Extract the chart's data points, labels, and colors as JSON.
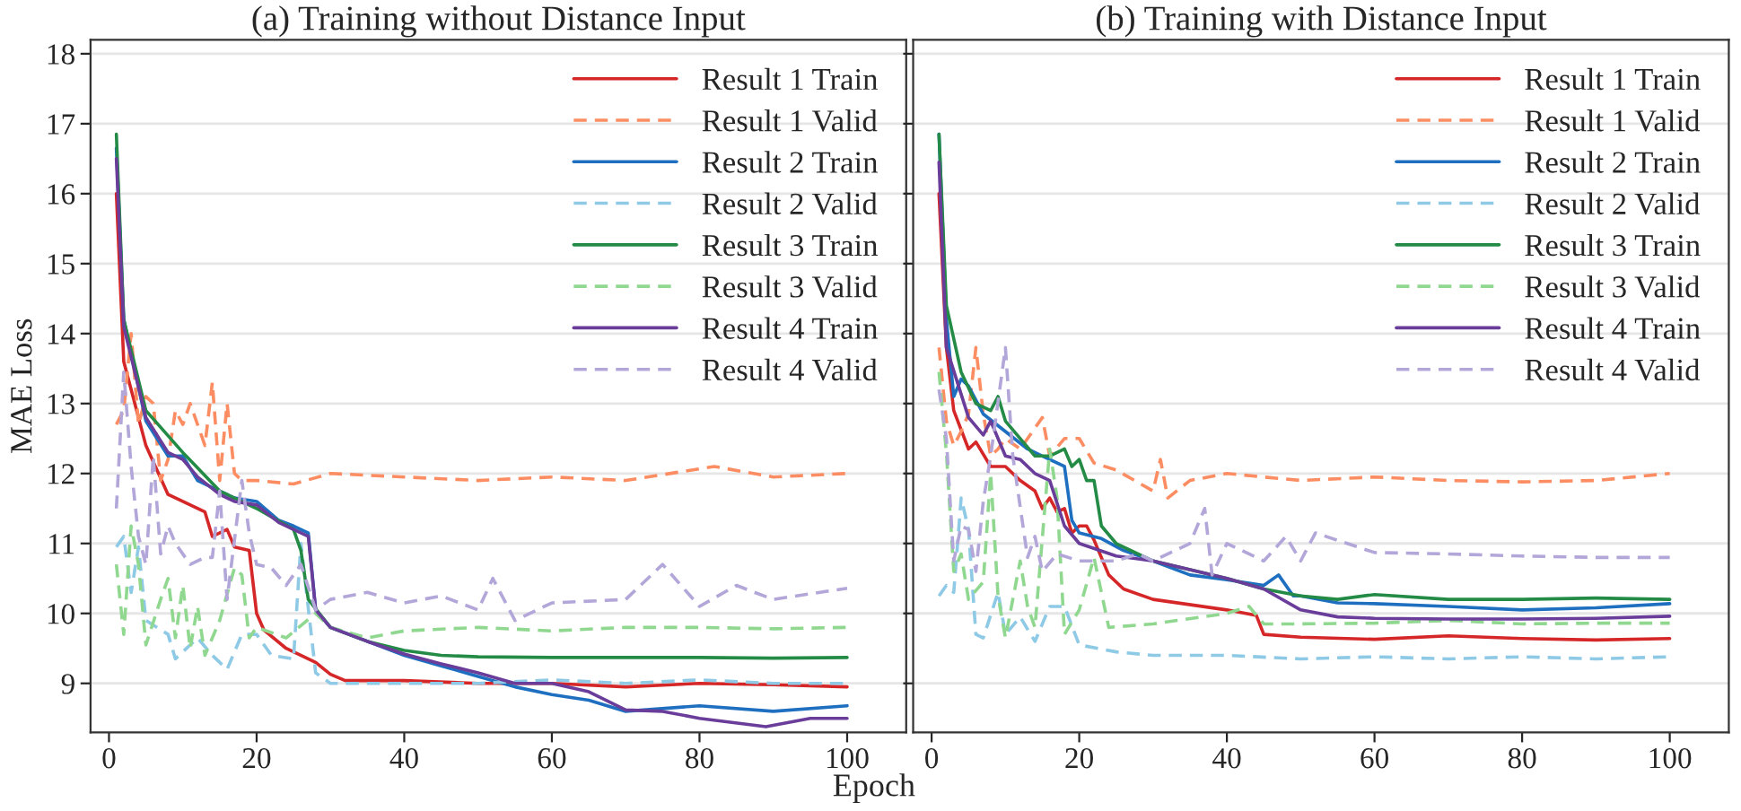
{
  "chart_data": [
    {
      "type": "line",
      "title": "(a) Training without Distance Input",
      "xlabel": "Epoch",
      "ylabel": "MAE Loss",
      "xlim": [
        -2.5,
        108
      ],
      "ylim": [
        8.3,
        18.2
      ],
      "xticks": [
        0,
        20,
        40,
        60,
        80,
        100
      ],
      "yticks": [
        9,
        10,
        11,
        12,
        13,
        14,
        15,
        16,
        17,
        18
      ],
      "grid": "y",
      "legend": "top right",
      "series": [
        {
          "name": "Result 1 Train",
          "color": "#d62728",
          "line_style": "solid",
          "x": [
            1,
            2,
            5,
            8,
            10,
            13,
            14,
            16,
            17,
            19,
            20,
            21,
            24,
            28,
            30,
            32,
            40,
            50,
            60,
            70,
            80,
            90,
            100
          ],
          "values": [
            16.0,
            13.6,
            12.4,
            11.7,
            11.6,
            11.45,
            11.1,
            11.2,
            10.95,
            10.9,
            10.0,
            9.76,
            9.5,
            9.3,
            9.13,
            9.04,
            9.04,
            9.0,
            9.0,
            8.95,
            9.0,
            8.98,
            8.95
          ]
        },
        {
          "name": "Result 1 Valid",
          "color": "#fc8d62",
          "line_style": "dashed",
          "x": [
            1,
            2,
            3,
            4,
            5,
            6,
            7,
            8,
            9,
            10,
            11,
            13,
            14,
            15,
            16,
            17,
            18,
            20,
            25,
            30,
            40,
            50,
            60,
            70,
            82,
            90,
            100
          ],
          "values": [
            12.7,
            12.9,
            14.0,
            12.7,
            13.1,
            13.0,
            11.9,
            12.2,
            12.9,
            12.7,
            13.0,
            12.4,
            13.3,
            11.9,
            13.0,
            12.0,
            11.9,
            11.9,
            11.85,
            12.0,
            11.95,
            11.9,
            11.95,
            11.9,
            12.1,
            11.95,
            12.0
          ]
        },
        {
          "name": "Result 2 Train",
          "color": "#1f6fc0",
          "line_style": "solid",
          "x": [
            1,
            2,
            5,
            8,
            10,
            12,
            15,
            17,
            20,
            23,
            25,
            27,
            28,
            30,
            35,
            40,
            45,
            50,
            55,
            60,
            65,
            70,
            80,
            90,
            100
          ],
          "values": [
            16.65,
            14.2,
            12.75,
            12.25,
            12.25,
            11.9,
            11.75,
            11.65,
            11.6,
            11.33,
            11.25,
            11.15,
            10.05,
            9.8,
            9.6,
            9.4,
            9.25,
            9.1,
            8.95,
            8.84,
            8.76,
            8.6,
            8.68,
            8.6,
            8.68
          ]
        },
        {
          "name": "Result 2 Valid",
          "color": "#8ecae6",
          "line_style": "dashed",
          "x": [
            1,
            2,
            3,
            4,
            5,
            8,
            9,
            12,
            14,
            16,
            18,
            20,
            22,
            25,
            26,
            28,
            30,
            40,
            50,
            60,
            70,
            80,
            90,
            100
          ],
          "values": [
            10.95,
            11.1,
            10.3,
            10.95,
            9.9,
            9.7,
            9.35,
            9.65,
            9.4,
            9.2,
            9.7,
            9.7,
            9.4,
            9.35,
            11.0,
            9.15,
            9.0,
            9.0,
            9.0,
            9.05,
            9.0,
            9.05,
            9.0,
            9.0
          ]
        },
        {
          "name": "Result 3 Train",
          "color": "#238b45",
          "line_style": "solid",
          "x": [
            1,
            2,
            5,
            10,
            15,
            20,
            25,
            26,
            27,
            30,
            35,
            40,
            45,
            50,
            60,
            70,
            80,
            90,
            100
          ],
          "values": [
            16.85,
            14.2,
            12.9,
            12.3,
            11.75,
            11.5,
            11.2,
            10.9,
            10.2,
            9.8,
            9.6,
            9.47,
            9.4,
            9.38,
            9.37,
            9.37,
            9.37,
            9.36,
            9.37
          ]
        },
        {
          "name": "Result 3 Valid",
          "color": "#90d890",
          "line_style": "dashed",
          "x": [
            1,
            2,
            3,
            4,
            5,
            7,
            8,
            9,
            10,
            11,
            12,
            13,
            15,
            17,
            18,
            19,
            20,
            24,
            28,
            30,
            35,
            40,
            50,
            60,
            70,
            80,
            90,
            100
          ],
          "values": [
            10.7,
            9.7,
            11.25,
            10.7,
            9.55,
            10.2,
            10.5,
            9.65,
            10.4,
            9.5,
            10.1,
            9.4,
            9.9,
            10.65,
            10.55,
            9.65,
            9.8,
            9.65,
            10.0,
            9.8,
            9.65,
            9.75,
            9.8,
            9.75,
            9.8,
            9.8,
            9.78,
            9.8
          ]
        },
        {
          "name": "Result 4 Train",
          "color": "#6a3d9a",
          "line_style": "solid",
          "x": [
            1,
            2,
            5,
            8,
            10,
            12,
            15,
            17,
            20,
            23,
            25,
            27,
            28,
            30,
            35,
            40,
            45,
            50,
            55,
            60,
            65,
            70,
            75,
            80,
            89,
            95,
            100
          ],
          "values": [
            16.5,
            14.1,
            12.8,
            12.3,
            12.2,
            11.95,
            11.7,
            11.6,
            11.55,
            11.3,
            11.2,
            11.1,
            10.05,
            9.8,
            9.6,
            9.42,
            9.28,
            9.15,
            9.0,
            9.0,
            8.88,
            8.62,
            8.6,
            8.5,
            8.38,
            8.5,
            8.5
          ]
        },
        {
          "name": "Result 4 Valid",
          "color": "#b3a6d9",
          "line_style": "dashed",
          "x": [
            1,
            2,
            3,
            4,
            5,
            6,
            7,
            8,
            9,
            11,
            13,
            14,
            15,
            16,
            18,
            19,
            20,
            22,
            24,
            26,
            28,
            30,
            35,
            40,
            45,
            50,
            52,
            55,
            60,
            70,
            75,
            80,
            85,
            90,
            100
          ],
          "values": [
            11.5,
            13.45,
            12.1,
            11.1,
            10.7,
            12.25,
            10.85,
            11.25,
            11.0,
            10.7,
            10.8,
            10.8,
            11.75,
            10.2,
            11.9,
            11.15,
            10.7,
            10.65,
            10.4,
            10.7,
            10.05,
            10.2,
            10.3,
            10.15,
            10.25,
            10.05,
            10.5,
            9.9,
            10.15,
            10.2,
            10.7,
            10.1,
            10.4,
            10.2,
            10.36
          ]
        }
      ]
    },
    {
      "type": "line",
      "title": "(b) Training with Distance Input",
      "xlim": [
        -2.5,
        108
      ],
      "ylim": [
        8.3,
        18.2
      ],
      "xticks": [
        0,
        20,
        40,
        60,
        80,
        100
      ],
      "yticks": [
        9,
        10,
        11,
        12,
        13,
        14,
        15,
        16,
        17,
        18
      ],
      "tick_labels": "x",
      "grid": "y",
      "legend": "top right",
      "series": [
        {
          "name": "Result 1 Train",
          "color": "#d62728",
          "line_style": "solid",
          "x": [
            1,
            2,
            3,
            5,
            6,
            8,
            10,
            12,
            14,
            15,
            16,
            17,
            18,
            19,
            20,
            21,
            22,
            24,
            26,
            30,
            40,
            44,
            45,
            50,
            60,
            70,
            80,
            90,
            100
          ],
          "values": [
            16.0,
            13.8,
            12.9,
            12.35,
            12.45,
            12.1,
            12.1,
            11.9,
            11.75,
            11.5,
            11.65,
            11.45,
            11.5,
            11.15,
            11.25,
            11.25,
            11.05,
            10.55,
            10.35,
            10.2,
            10.05,
            9.97,
            9.7,
            9.66,
            9.63,
            9.68,
            9.64,
            9.62,
            9.64
          ]
        },
        {
          "name": "Result 1 Valid",
          "color": "#fc8d62",
          "line_style": "dashed",
          "x": [
            1,
            2,
            3,
            4,
            5,
            6,
            7,
            8,
            9,
            10,
            12,
            15,
            16,
            18,
            20,
            22,
            25,
            30,
            31,
            32,
            35,
            40,
            50,
            60,
            70,
            80,
            90,
            100
          ],
          "values": [
            13.8,
            12.75,
            12.4,
            12.6,
            12.85,
            13.8,
            12.85,
            12.25,
            12.35,
            12.5,
            12.35,
            12.8,
            12.25,
            12.5,
            12.5,
            12.15,
            12.05,
            11.75,
            12.2,
            11.65,
            11.9,
            12.0,
            11.9,
            11.95,
            11.9,
            11.88,
            11.9,
            12.0
          ]
        },
        {
          "name": "Result 2 Train",
          "color": "#1f6fc0",
          "line_style": "solid",
          "x": [
            1,
            2,
            3,
            4,
            5,
            7,
            10,
            13,
            15,
            18,
            19,
            20,
            23,
            26,
            30,
            35,
            40,
            45,
            47,
            49,
            50,
            55,
            60,
            70,
            80,
            90,
            100
          ],
          "values": [
            16.85,
            14.2,
            13.1,
            13.35,
            13.25,
            12.85,
            12.6,
            12.35,
            12.25,
            12.1,
            11.33,
            11.15,
            11.07,
            10.9,
            10.75,
            10.55,
            10.48,
            10.4,
            10.55,
            10.25,
            10.25,
            10.15,
            10.14,
            10.1,
            10.05,
            10.08,
            10.14
          ]
        },
        {
          "name": "Result 2 Valid",
          "color": "#8ecae6",
          "line_style": "dashed",
          "x": [
            1,
            2,
            3,
            4,
            5,
            6,
            7,
            9,
            10,
            12,
            14,
            16,
            18,
            20,
            25,
            30,
            40,
            50,
            60,
            70,
            80,
            90,
            100
          ],
          "values": [
            10.25,
            10.4,
            10.3,
            11.65,
            11.2,
            9.7,
            9.65,
            10.3,
            9.7,
            9.95,
            9.6,
            10.1,
            10.1,
            9.55,
            9.45,
            9.4,
            9.4,
            9.35,
            9.38,
            9.35,
            9.38,
            9.35,
            9.38
          ]
        },
        {
          "name": "Result 3 Train",
          "color": "#238b45",
          "line_style": "solid",
          "x": [
            1,
            2,
            4,
            6,
            8,
            9,
            10,
            12,
            14,
            16,
            18,
            19,
            20,
            21,
            22,
            23,
            25,
            30,
            40,
            45,
            50,
            55,
            60,
            70,
            80,
            90,
            100
          ],
          "values": [
            16.85,
            14.4,
            13.45,
            13.0,
            12.9,
            13.1,
            12.75,
            12.5,
            12.25,
            12.25,
            12.35,
            12.1,
            12.2,
            11.9,
            11.9,
            11.25,
            11.0,
            10.75,
            10.5,
            10.35,
            10.25,
            10.2,
            10.27,
            10.2,
            10.2,
            10.22,
            10.2
          ]
        },
        {
          "name": "Result 3 Valid",
          "color": "#90d890",
          "line_style": "dashed",
          "x": [
            1,
            2,
            3,
            4,
            5,
            7,
            8,
            9,
            10,
            12,
            13,
            14,
            16,
            17,
            18,
            20,
            22,
            24,
            30,
            40,
            43,
            45,
            50,
            60,
            70,
            80,
            90,
            100
          ],
          "values": [
            13.45,
            12.3,
            10.6,
            10.85,
            10.2,
            10.45,
            12.0,
            10.25,
            9.65,
            10.75,
            10.1,
            9.8,
            12.35,
            11.65,
            9.7,
            10.05,
            10.8,
            9.8,
            9.85,
            10.0,
            10.1,
            9.85,
            9.85,
            9.86,
            9.9,
            9.85,
            9.86,
            9.86
          ]
        },
        {
          "name": "Result 4 Train",
          "color": "#6a3d9a",
          "line_style": "solid",
          "x": [
            1,
            2,
            5,
            7,
            8,
            10,
            12,
            14,
            16,
            18,
            20,
            25,
            30,
            40,
            45,
            50,
            55,
            60,
            70,
            80,
            90,
            100
          ],
          "values": [
            16.45,
            13.8,
            12.8,
            12.55,
            12.75,
            12.25,
            12.2,
            12.0,
            11.9,
            11.25,
            11.0,
            10.82,
            10.75,
            10.5,
            10.35,
            10.05,
            9.95,
            9.93,
            9.92,
            9.92,
            9.93,
            9.96
          ]
        },
        {
          "name": "Result 4 Valid",
          "color": "#b3a6d9",
          "line_style": "dashed",
          "x": [
            1,
            2,
            3,
            4,
            5,
            6,
            7,
            8,
            10,
            11,
            13,
            14,
            15,
            17,
            20,
            25,
            28,
            30,
            35,
            37,
            38,
            40,
            45,
            48,
            50,
            52,
            60,
            70,
            80,
            90,
            100
          ],
          "values": [
            13.2,
            12.5,
            10.75,
            11.25,
            11.2,
            10.6,
            11.6,
            12.25,
            13.8,
            12.25,
            10.8,
            11.1,
            10.6,
            10.85,
            10.75,
            10.75,
            10.85,
            10.75,
            11.0,
            11.5,
            10.55,
            11.0,
            10.75,
            11.1,
            10.75,
            11.15,
            10.87,
            10.85,
            10.82,
            10.8,
            10.8
          ]
        }
      ]
    }
  ]
}
